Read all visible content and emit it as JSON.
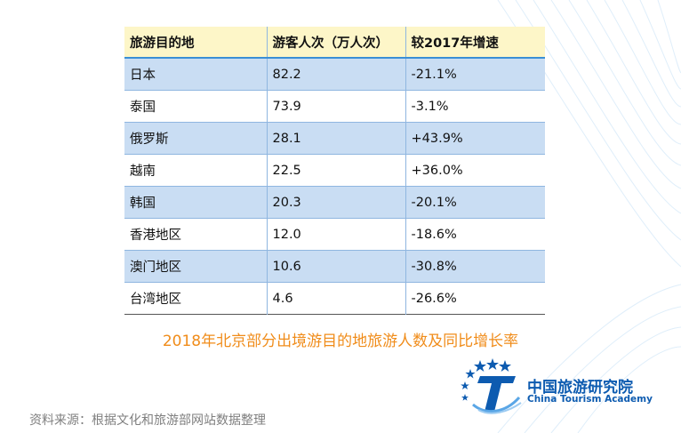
{
  "table": {
    "headers": [
      "旅游目的地",
      "游客人次（万人次）",
      "较2017年增速"
    ],
    "rows": [
      [
        "日本",
        "82.2",
        "-21.1%"
      ],
      [
        "泰国",
        "73.9",
        "-3.1%"
      ],
      [
        "俄罗斯",
        "28.1",
        "+43.9%"
      ],
      [
        "越南",
        "22.5",
        "+36.0%"
      ],
      [
        "韩国",
        "20.3",
        "-20.1%"
      ],
      [
        "香港地区",
        "12.0",
        "-18.6%"
      ],
      [
        "澳门地区",
        "10.6",
        "-30.8%"
      ],
      [
        "台湾地区",
        "4.6",
        "-26.6%"
      ]
    ]
  },
  "caption": "2018年北京部分出境游目的地旅游人数及同比增长率",
  "source": "资料来源：根据文化和旅游部网站数据整理",
  "logo": {
    "name_cn": "中国旅游研究院",
    "name_en": "China Tourism Academy"
  },
  "colors": {
    "header_bg": "#fdf6c8",
    "row_alt_bg": "#c9ddf3",
    "accent_line": "#3a8fd6",
    "caption": "#f08c1a",
    "logo_blue": "#0d5bb0"
  }
}
